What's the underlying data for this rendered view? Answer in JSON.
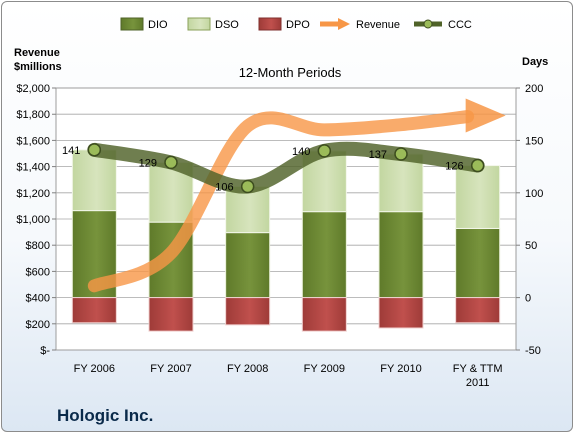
{
  "company": "Hologic Inc.",
  "colors": {
    "dio": "#77933c",
    "dso": "#d7e4bd",
    "dpo": "#c0504d",
    "revenue": "#f79646",
    "ccc": "#4f6228",
    "plot_bg": "#ffffff",
    "grid": "#a6a6a6"
  },
  "chart_data": {
    "type": "bar",
    "title": "12-Month Periods",
    "left_axis_label": [
      "Revenue",
      "$millions"
    ],
    "right_axis_label": "Days",
    "categories": [
      "FY 2006",
      "FY 2007",
      "FY 2008",
      "FY 2009",
      "FY 2010",
      "FY & TTM 2011"
    ],
    "left_axis": {
      "min": 0,
      "max": 2000,
      "step": 200,
      "ticks": [
        "$-",
        "$200",
        "$400",
        "$600",
        "$800",
        "$1,000",
        "$1,200",
        "$1,400",
        "$1,600",
        "$1,800",
        "$2,000"
      ]
    },
    "right_axis": {
      "min": -50,
      "max": 200,
      "step": 50,
      "ticks": [
        "-50",
        "0",
        "50",
        "100",
        "150",
        "200"
      ]
    },
    "legend": [
      "DIO",
      "DSO",
      "DPO",
      "Revenue",
      "CCC"
    ],
    "legend_position": "top",
    "series": [
      {
        "name": "DIO",
        "axis": "days",
        "kind": "stacked-bar",
        "values": [
          83,
          72,
          62,
          82,
          82,
          66
        ]
      },
      {
        "name": "DSO",
        "axis": "days",
        "kind": "stacked-bar",
        "values": [
          58,
          57,
          44,
          58,
          55,
          60
        ]
      },
      {
        "name": "DPO",
        "axis": "days",
        "kind": "negative-bar",
        "values": [
          -24,
          -32,
          -26,
          -32,
          -29,
          -24
        ]
      },
      {
        "name": "Revenue",
        "axis": "revenue",
        "kind": "line",
        "values": [
          490,
          740,
          1710,
          1680,
          1720,
          1790
        ]
      },
      {
        "name": "CCC",
        "axis": "days",
        "kind": "line",
        "values": [
          141,
          129,
          106,
          140,
          137,
          126
        ],
        "labels": [
          "141",
          "129",
          "106",
          "140",
          "137",
          "126"
        ]
      }
    ]
  }
}
